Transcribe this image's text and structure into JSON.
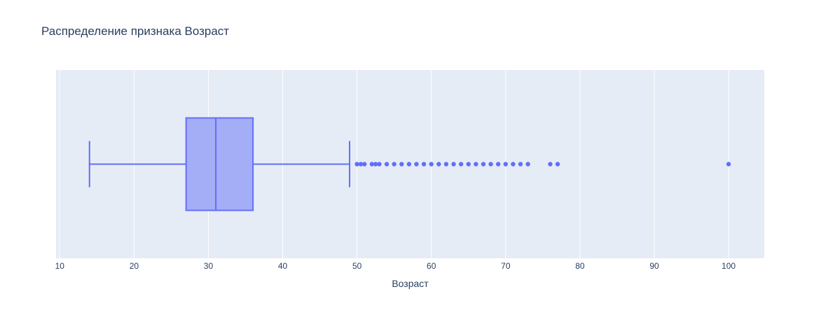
{
  "chart_data": {
    "type": "box",
    "orientation": "horizontal",
    "title": "Распределение признака Возраст",
    "xlabel": "Возраст",
    "ylabel": "",
    "xlim": [
      9.5,
      104.8
    ],
    "xticks": [
      10,
      20,
      30,
      40,
      50,
      60,
      70,
      80,
      90,
      100
    ],
    "grid": true,
    "legend": "none",
    "colors": {
      "plot_bg": "#e5ecf6",
      "grid": "#ffffff",
      "box_fill": "#a3aef7",
      "box_line": "#636efa",
      "text": "#2a3f5f"
    },
    "box": {
      "lower_fence": 14,
      "q1": 27,
      "median": 31,
      "q3": 36,
      "upper_fence": 49
    },
    "outliers": [
      50,
      50.5,
      51,
      52,
      52.5,
      53,
      54,
      55,
      56,
      57,
      58,
      59,
      60,
      61,
      62,
      63,
      64,
      65,
      66,
      67,
      68,
      69,
      70,
      71,
      72,
      73,
      76,
      77,
      100
    ]
  }
}
